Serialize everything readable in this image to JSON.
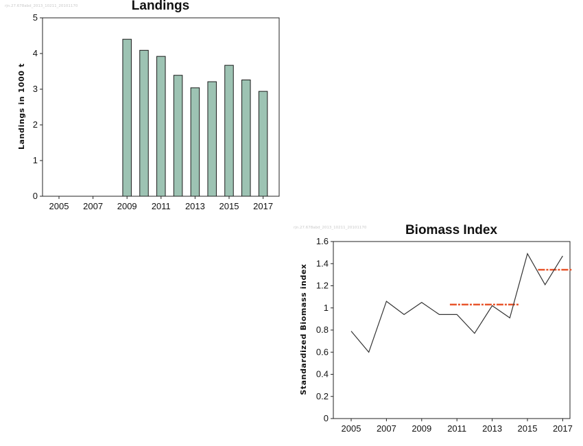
{
  "chart_data": [
    {
      "type": "bar",
      "title": "Landings",
      "watermark": "rjn.27.678abd_2013_10211_20101170",
      "ylabel": "Landings in 1000 t",
      "xlabel": "",
      "ylim": [
        0,
        5
      ],
      "yticks": [
        0,
        1,
        2,
        3,
        4,
        5
      ],
      "xticks": [
        "2005",
        "2007",
        "2009",
        "2011",
        "2013",
        "2015",
        "2017"
      ],
      "categories": [
        "2005",
        "2006",
        "2007",
        "2008",
        "2009",
        "2010",
        "2011",
        "2012",
        "2013",
        "2014",
        "2015",
        "2016",
        "2017"
      ],
      "values": [
        null,
        null,
        null,
        null,
        4.4,
        4.09,
        3.92,
        3.39,
        3.04,
        3.21,
        3.67,
        3.26,
        2.94
      ],
      "bar_color": "#9dc3b3",
      "grid": false
    },
    {
      "type": "line",
      "title": "Biomass Index",
      "watermark": "rjn.27.678abd_2013_10211_20101170",
      "ylabel": "Standardized Biomass index",
      "xlabel": "",
      "ylim": [
        0,
        1.6
      ],
      "yticks": [
        "0",
        "0.2",
        "0.4",
        "0.6",
        "0.8",
        "1",
        "1.2",
        "1.4",
        "1.6"
      ],
      "xticks": [
        "2005",
        "2007",
        "2009",
        "2011",
        "2013",
        "2015",
        "2017"
      ],
      "x": [
        2005,
        2006,
        2007,
        2008,
        2009,
        2010,
        2011,
        2012,
        2013,
        2014,
        2015,
        2016,
        2017
      ],
      "series": [
        {
          "values": [
            0.79,
            0.6,
            1.06,
            0.94,
            1.05,
            0.94,
            0.94,
            0.77,
            1.02,
            0.91,
            1.49,
            1.21,
            1.47
          ],
          "color": "#333333"
        }
      ],
      "reference_lines": [
        {
          "x_start": 2010.6,
          "x_end": 2014.5,
          "value": 1.03,
          "color": "#e8552c",
          "style": "dash-dot"
        },
        {
          "x_start": 2015.6,
          "x_end": 2017.5,
          "value": 1.345,
          "color": "#e8552c",
          "style": "dash-dot"
        }
      ],
      "grid": false
    }
  ]
}
